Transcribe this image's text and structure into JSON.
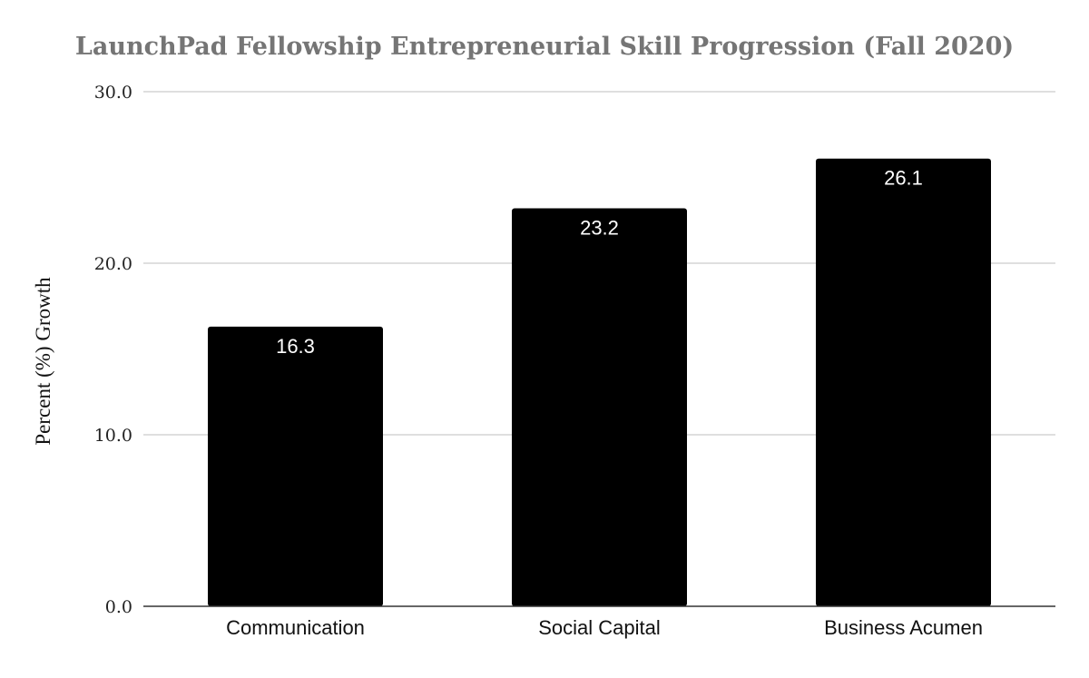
{
  "chart_data": {
    "type": "bar",
    "title": "LaunchPad Fellowship Entrepreneurial Skill Progression (Fall 2020)",
    "ylabel": "Percent (%) Growth",
    "xlabel": "",
    "categories": [
      "Communication",
      "Social Capital",
      "Business Acumen"
    ],
    "values": [
      16.3,
      23.2,
      26.1
    ],
    "data_labels": [
      "16.3",
      "23.2",
      "26.1"
    ],
    "ylim": [
      0,
      30
    ],
    "yticks": [
      0,
      10,
      20,
      30
    ],
    "ytick_labels": [
      "0.0",
      "10.0",
      "20.0",
      "30.0"
    ],
    "grid": true,
    "legend": "none",
    "colors": {
      "bar": "#000000",
      "title": "#757575",
      "grid": "#cccccc",
      "data_label": "#ffffff"
    }
  }
}
